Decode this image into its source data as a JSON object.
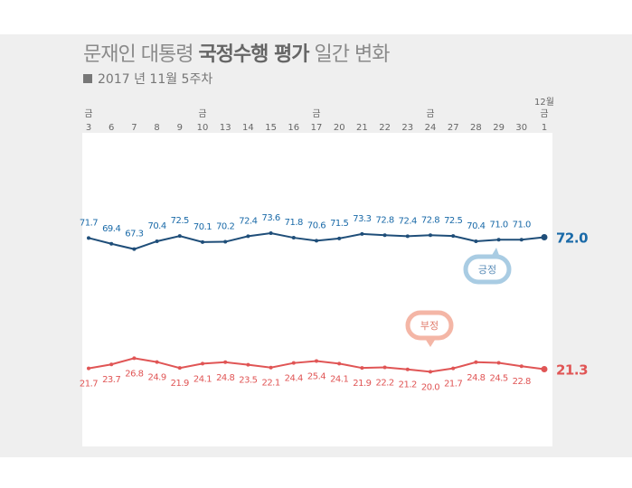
{
  "title_normal_1": "문재인 대통령 ",
  "title_bold": "국정수행 평가",
  "title_normal_2": " 일간 변화",
  "subtitle": "2017 년 11월 5주차",
  "chart_data": {
    "type": "line",
    "categories": [
      "3",
      "6",
      "7",
      "8",
      "9",
      "10",
      "13",
      "14",
      "15",
      "16",
      "17",
      "20",
      "21",
      "22",
      "23",
      "24",
      "27",
      "28",
      "29",
      "30",
      "1"
    ],
    "weekday_labels": [
      "금",
      "",
      "",
      "",
      "",
      "금",
      "",
      "",
      "",
      "",
      "금",
      "",
      "",
      "",
      "",
      "금",
      "",
      "",
      "",
      "",
      "금"
    ],
    "month_labels": [
      "",
      "",
      "",
      "",
      "",
      "",
      "",
      "",
      "",
      "",
      "",
      "",
      "",
      "",
      "",
      "",
      "",
      "",
      "",
      "",
      "12월"
    ],
    "series": [
      {
        "name": "긍정",
        "color": "#1f4e79",
        "label_color": "#1a6aa8",
        "values": [
          71.7,
          69.4,
          67.3,
          70.4,
          72.5,
          70.1,
          70.2,
          72.4,
          73.6,
          71.8,
          70.6,
          71.5,
          73.3,
          72.8,
          72.4,
          72.8,
          72.5,
          70.4,
          71.0,
          71.0,
          72.0
        ],
        "labels": [
          "71.7",
          "69.4",
          "67.3",
          "70.4",
          "72.5",
          "70.1",
          "70.2",
          "72.4",
          "73.6",
          "71.8",
          "70.6",
          "71.5",
          "73.3",
          "72.8",
          "72.4",
          "72.8",
          "72.5",
          "70.4",
          "71.0",
          "71.0",
          "72.0"
        ]
      },
      {
        "name": "부정",
        "color": "#e05555",
        "label_color": "#e05555",
        "values": [
          21.7,
          23.7,
          26.8,
          24.9,
          21.9,
          24.1,
          24.8,
          23.5,
          22.1,
          24.4,
          25.4,
          24.1,
          21.9,
          22.2,
          21.2,
          20.0,
          21.7,
          24.8,
          24.5,
          22.8,
          21.3
        ],
        "labels": [
          "21.7",
          "23.7",
          "26.8",
          "24.9",
          "21.9",
          "24.1",
          "24.8",
          "23.5",
          "22.1",
          "24.4",
          "25.4",
          "24.1",
          "21.9",
          "22.2",
          "21.2",
          "20.0",
          "21.7",
          "24.8",
          "24.5",
          "22.8",
          "21.3"
        ]
      }
    ],
    "bubble_colors": {
      "positive": "#a9cce3",
      "negative": "#f4b6a6"
    },
    "grid": false
  }
}
